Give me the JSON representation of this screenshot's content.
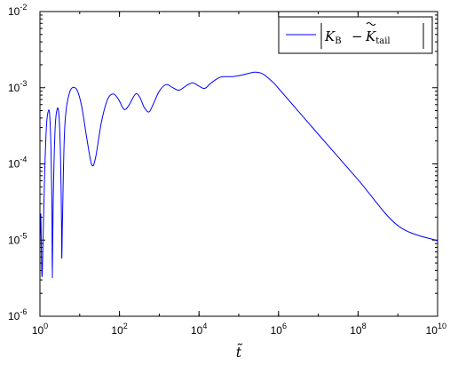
{
  "chart_data": {
    "type": "line",
    "x_scale": "log",
    "y_scale": "log",
    "xlim": [
      1,
      10000000000
    ],
    "ylim": [
      1e-06,
      0.01
    ],
    "x_ticks": [
      {
        "base": "10",
        "exp": "0",
        "value": 1
      },
      {
        "base": "10",
        "exp": "2",
        "value": 100
      },
      {
        "base": "10",
        "exp": "4",
        "value": 10000
      },
      {
        "base": "10",
        "exp": "6",
        "value": 1000000
      },
      {
        "base": "10",
        "exp": "8",
        "value": 100000000
      },
      {
        "base": "10",
        "exp": "10",
        "value": 10000000000
      }
    ],
    "y_ticks": [
      {
        "base": "10",
        "exp": "-6",
        "value": 1e-06
      },
      {
        "base": "10",
        "exp": "-5",
        "value": 1e-05
      },
      {
        "base": "10",
        "exp": "-4",
        "value": 0.0001
      },
      {
        "base": "10",
        "exp": "-3",
        "value": 0.001
      },
      {
        "base": "10",
        "exp": "-2",
        "value": 0.01
      }
    ],
    "xlabel": "t̃",
    "grid": false,
    "legend_position": "top-right",
    "series": [
      {
        "name": "|K_B − K̃_tail|",
        "color": "#0000ff",
        "points": [
          [
            1.0,
            8e-06
          ],
          [
            1.05,
            2.2e-05
          ],
          [
            1.1,
            5e-06
          ],
          [
            1.15,
            4e-06
          ],
          [
            1.3,
            6e-05
          ],
          [
            1.45,
            0.0003
          ],
          [
            1.6,
            0.00048
          ],
          [
            1.75,
            0.00045
          ],
          [
            1.9,
            0.00015
          ],
          [
            2.0,
            3e-05
          ],
          [
            2.05,
            3.2e-06
          ],
          [
            2.15,
            3e-05
          ],
          [
            2.4,
            0.00028
          ],
          [
            2.7,
            0.00052
          ],
          [
            3.0,
            0.00044
          ],
          [
            3.3,
            0.00012
          ],
          [
            3.5,
            1.5e-05
          ],
          [
            3.55,
            5.8e-06
          ],
          [
            3.7,
            2e-05
          ],
          [
            4.2,
            0.0003
          ],
          [
            5.5,
            0.00085
          ],
          [
            8.0,
            0.00098
          ],
          [
            11.0,
            0.0006
          ],
          [
            15.0,
            0.00022
          ],
          [
            20.0,
            9.8e-05
          ],
          [
            25.0,
            0.00012
          ],
          [
            35.0,
            0.00035
          ],
          [
            50.0,
            0.0007
          ],
          [
            70.0,
            0.00083
          ],
          [
            95.0,
            0.0007
          ],
          [
            130.0,
            0.00052
          ],
          [
            170.0,
            0.00058
          ],
          [
            250.0,
            0.00082
          ],
          [
            320.0,
            0.00076
          ],
          [
            420.0,
            0.00055
          ],
          [
            550.0,
            0.00048
          ],
          [
            700.0,
            0.0006
          ],
          [
            1000.0,
            0.0009
          ],
          [
            1500.0,
            0.0011
          ],
          [
            2200.0,
            0.001
          ],
          [
            3200.0,
            0.00093
          ],
          [
            5000.0,
            0.00108
          ],
          [
            7000.0,
            0.00116
          ],
          [
            10000.0,
            0.00105
          ],
          [
            14000.0,
            0.00098
          ],
          [
            20000.0,
            0.00115
          ],
          [
            35000.0,
            0.00138
          ],
          [
            70000.0,
            0.0014
          ],
          [
            130000.0,
            0.00148
          ],
          [
            250000.0,
            0.0016
          ],
          [
            400000.0,
            0.00152
          ],
          [
            700000.0,
            0.0012
          ],
          [
            1000000.0,
            0.00098
          ],
          [
            10000000.0,
            0.000245
          ],
          [
            100000000.0,
            6.2e-05
          ],
          [
            1000000000.0,
            1.55e-05
          ],
          [
            10000000000.0,
            9.8e-06
          ]
        ]
      }
    ]
  }
}
